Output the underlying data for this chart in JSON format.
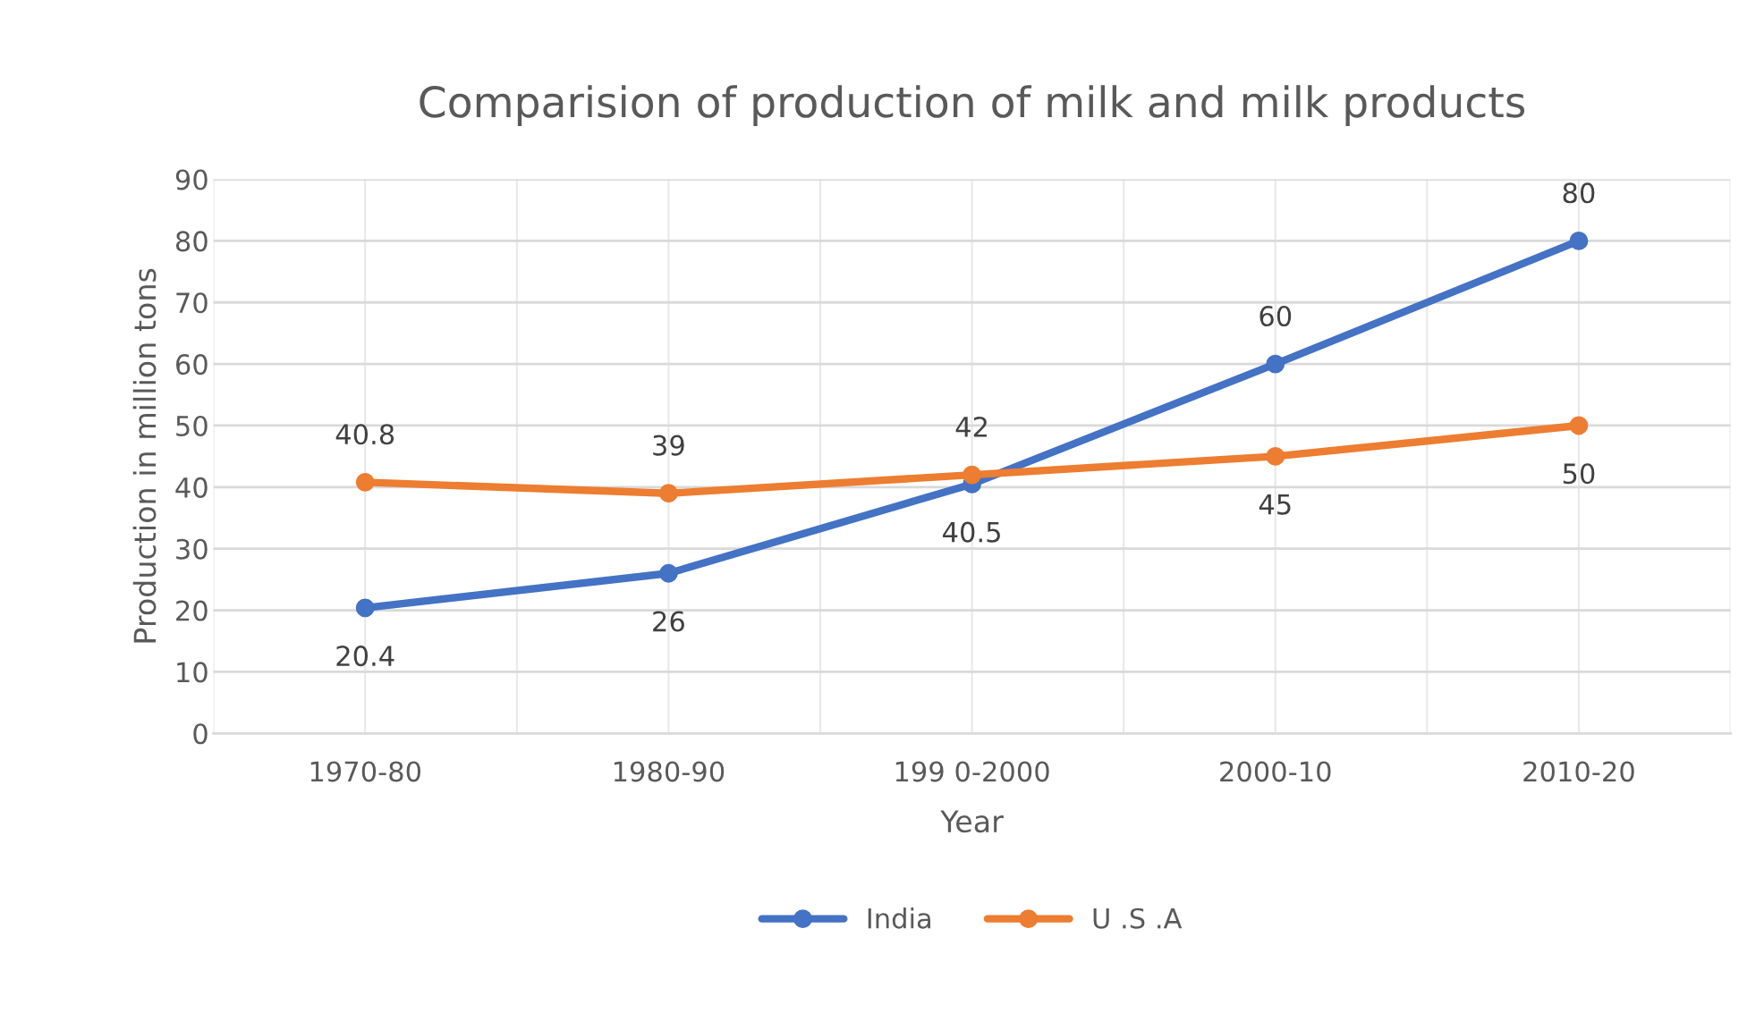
{
  "chart_data": {
    "type": "line",
    "title": "Comparision of production of milk and milk products",
    "xlabel": "Year",
    "ylabel": "Production in million tons",
    "categories": [
      "1970-80",
      "1980-90",
      "199 0-2000",
      "2000-10",
      "2010-20"
    ],
    "series": [
      {
        "name": "India",
        "color": "#4472c4",
        "values": [
          20.4,
          26,
          40.5,
          60,
          80
        ]
      },
      {
        "name": "U .S .A",
        "color": "#ed7d31",
        "values": [
          40.8,
          39,
          42,
          45,
          50
        ]
      }
    ],
    "ylim": [
      0,
      90
    ],
    "yticks": [
      0,
      10,
      20,
      30,
      40,
      50,
      60,
      70,
      80,
      90
    ],
    "grid": true,
    "legend": "bottom",
    "marker": "circle",
    "line_style": "solid",
    "data_labels": true
  }
}
